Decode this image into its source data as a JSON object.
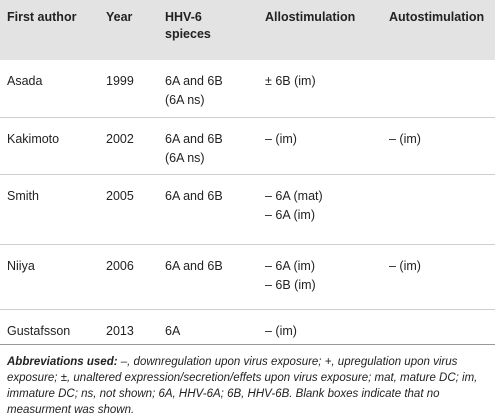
{
  "table": {
    "headers": [
      [
        "First author"
      ],
      [
        "Year"
      ],
      [
        "HHV-6",
        "spieces"
      ],
      [
        "Allostimulation"
      ],
      [
        "Autostimulation"
      ]
    ],
    "rows": [
      [
        [
          "Asada"
        ],
        [
          "1999"
        ],
        [
          "6A and 6B",
          "(6A ns)"
        ],
        [
          "± 6B (im)"
        ],
        []
      ],
      [
        [
          "Kakimoto"
        ],
        [
          "2002"
        ],
        [
          "6A and 6B",
          "(6A ns)"
        ],
        [
          "– (im)"
        ],
        [
          "– (im)"
        ]
      ],
      [
        [
          "Smith"
        ],
        [
          "2005"
        ],
        [
          "6A and 6B"
        ],
        [
          "– 6A (mat)",
          "– 6A (im)"
        ],
        []
      ],
      [
        [
          "Niiya"
        ],
        [
          "2006"
        ],
        [
          "6A and 6B"
        ],
        [
          "– 6A (im)",
          "– 6B (im)"
        ],
        [
          "– (im)"
        ]
      ],
      [
        [
          "Gustafsson"
        ],
        [
          "2013"
        ],
        [
          "6A"
        ],
        [
          "– (im)"
        ],
        []
      ]
    ]
  },
  "footnote": {
    "label": "Abbreviations used:",
    "text": "–, downregulation upon virus exposure; +, upregulation upon virus exposure; ±, unaltered expression/secretion/effets upon virus exposure; mat, mature DC; im, immature DC; ns, not shown; 6A, HHV-6A; 6B, HHV-6B. Blank boxes indicate that no measurment was shown."
  }
}
